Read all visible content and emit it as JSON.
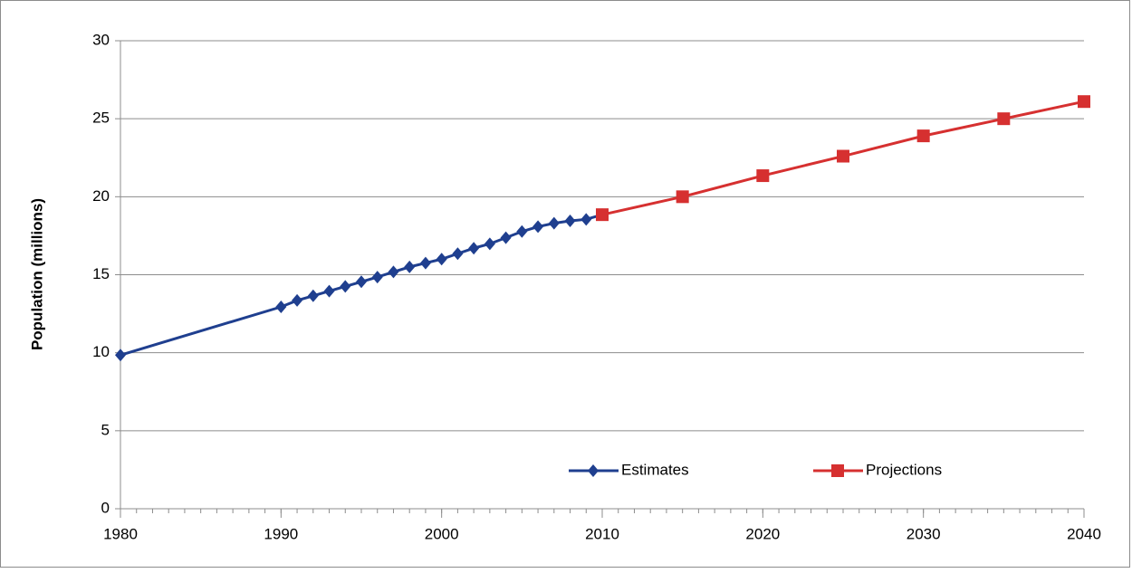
{
  "chart_data": {
    "type": "line",
    "y_label": "Population (millions)",
    "xlim": [
      1980,
      2040
    ],
    "xticks": [
      1980,
      1990,
      2000,
      2010,
      2020,
      2030,
      2040
    ],
    "ylim": [
      0,
      30
    ],
    "yticks": [
      0,
      5,
      10,
      15,
      20,
      25,
      30
    ],
    "grid": true,
    "legend": "lower right",
    "series": [
      {
        "name": "Estimates",
        "color": "#1f3f8f",
        "marker": "diamond",
        "x": [
          1980,
          1990,
          1991,
          1992,
          1993,
          1994,
          1995,
          1996,
          1997,
          1998,
          1999,
          2000,
          2001,
          2002,
          2003,
          2004,
          2005,
          2006,
          2007,
          2008,
          2009,
          2010
        ],
        "values": [
          9.85,
          12.94,
          13.35,
          13.65,
          13.95,
          14.25,
          14.55,
          14.85,
          15.18,
          15.5,
          15.75,
          16.0,
          16.35,
          16.7,
          16.98,
          17.37,
          17.77,
          18.08,
          18.3,
          18.45,
          18.55,
          18.85
        ]
      },
      {
        "name": "Projections",
        "color": "#d63030",
        "marker": "square",
        "x": [
          2010,
          2015,
          2020,
          2025,
          2030,
          2035,
          2040
        ],
        "values": [
          18.85,
          20.0,
          21.35,
          22.6,
          23.9,
          25.0,
          26.1
        ]
      }
    ]
  }
}
